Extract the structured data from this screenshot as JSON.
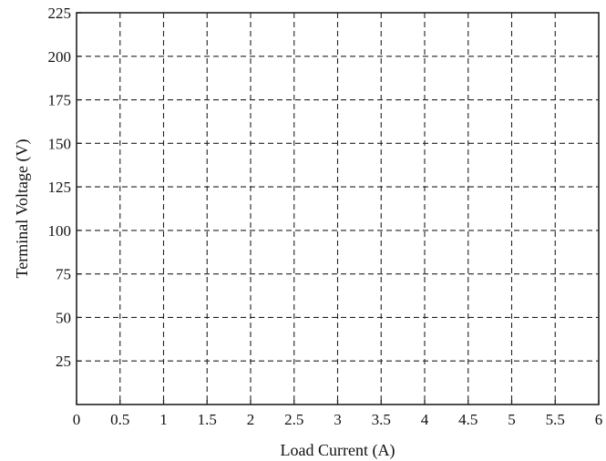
{
  "chart_data": {
    "type": "line",
    "title": "",
    "xlabel": "Load Current (A)",
    "ylabel": "Terminal Voltage (V)",
    "xlim": [
      0,
      6
    ],
    "ylim": [
      0,
      225
    ],
    "x_ticks": [
      0,
      0.5,
      1,
      1.5,
      2,
      2.5,
      3,
      3.5,
      4,
      4.5,
      5,
      5.5,
      6
    ],
    "y_ticks": [
      25,
      50,
      75,
      100,
      125,
      150,
      175,
      200,
      225
    ],
    "x_tick_labels": [
      "0",
      "0.5",
      "1",
      "1.5",
      "2",
      "2.5",
      "3",
      "3.5",
      "4",
      "4.5",
      "5",
      "5.5",
      "6"
    ],
    "y_tick_labels": [
      "25",
      "50",
      "75",
      "100",
      "125",
      "150",
      "175",
      "200",
      "225"
    ],
    "grid": true,
    "grid_style": "dashed",
    "series": []
  }
}
